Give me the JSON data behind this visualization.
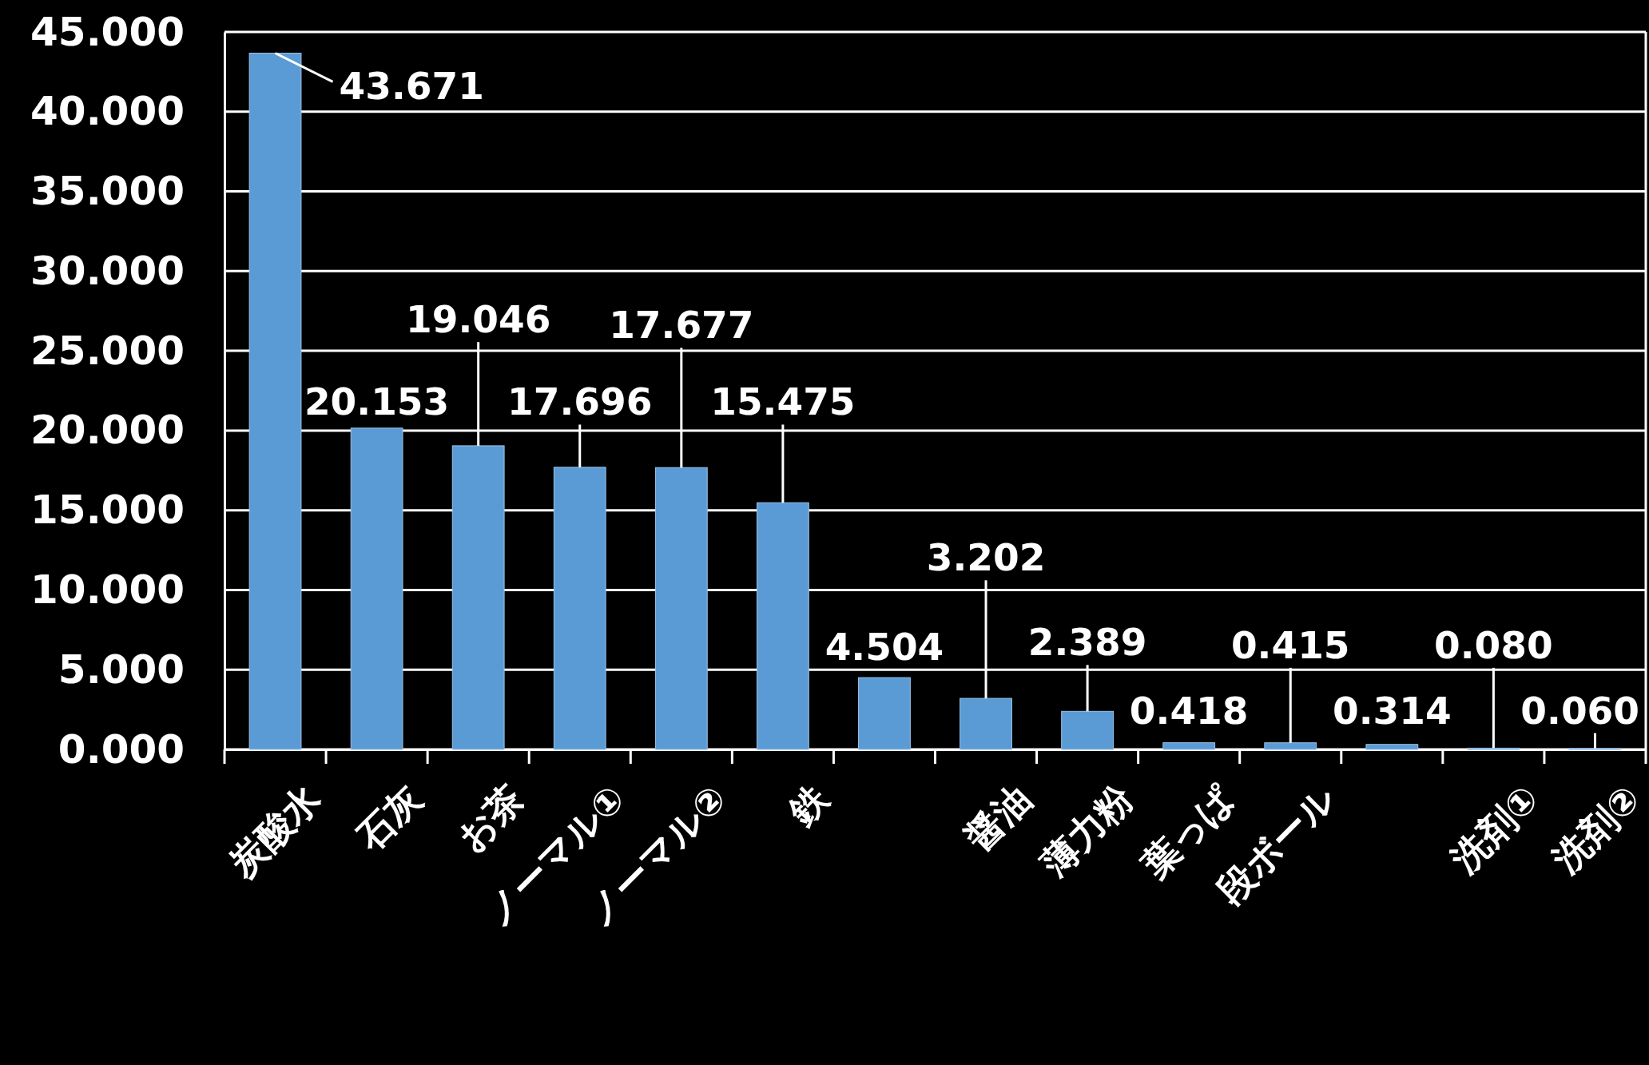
{
  "chart_data": {
    "type": "bar",
    "categories": [
      "炭酸水",
      "石灰",
      "お茶",
      "ノーマル①",
      "ノーマル②",
      "鉄",
      null,
      "醤油",
      "薄力粉",
      "葉っぱ",
      "段ボール",
      null,
      "洗剤①",
      "洗剤②"
    ],
    "values": [
      43.671,
      20.153,
      19.046,
      17.696,
      17.677,
      15.475,
      4.504,
      3.202,
      2.389,
      0.418,
      0.415,
      0.314,
      0.08,
      0.06
    ],
    "value_labels": [
      "43.671",
      "20.153",
      "19.046",
      "17.696",
      "17.677",
      "15.475",
      "4.504",
      "3.202",
      "2.389",
      "0.418",
      "0.415",
      "0.314",
      "0.080",
      "0.060"
    ],
    "color": "#5b9bd5",
    "ylim": [
      0,
      45
    ],
    "yticks": [
      {
        "value": 0,
        "label": "0.000"
      },
      {
        "value": 5,
        "label": "5.000"
      },
      {
        "value": 10,
        "label": "10.000"
      },
      {
        "value": 15,
        "label": "15.000"
      },
      {
        "value": 20,
        "label": "20.000"
      },
      {
        "value": 25,
        "label": "25.000"
      },
      {
        "value": 30,
        "label": "30.000"
      },
      {
        "value": 35,
        "label": "35.000"
      },
      {
        "value": 40,
        "label": "40.000"
      },
      {
        "value": 45,
        "label": "45.000"
      }
    ],
    "grid": "y"
  }
}
